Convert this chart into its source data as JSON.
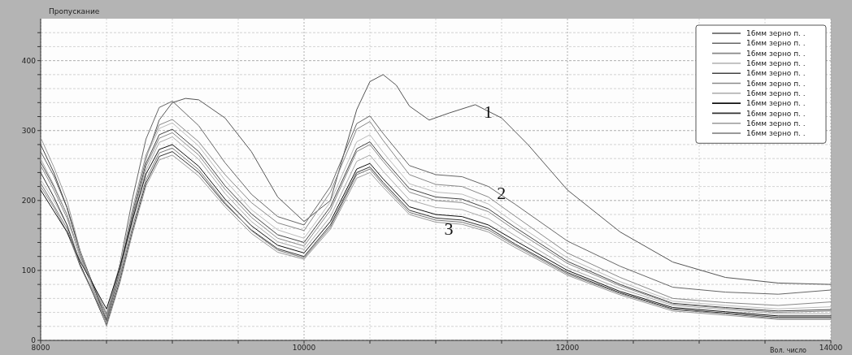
{
  "chart_data": {
    "type": "line",
    "title": "Пропускание",
    "xlabel": "Вол. число",
    "xlim": [
      8000,
      14000
    ],
    "xticks": [
      8000,
      {
        "value": 8500,
        "label": null
      },
      {
        "value": 9000,
        "label": null
      },
      {
        "value": 9500,
        "label": null
      },
      10000,
      {
        "value": 10500,
        "label": null
      },
      {
        "value": 11000,
        "label": null
      },
      {
        "value": 11500,
        "label": null
      },
      12000,
      {
        "value": 12500,
        "label": null
      },
      {
        "value": 13000,
        "label": null
      },
      {
        "value": 13500,
        "label": null
      },
      14000
    ],
    "ylim": [
      0,
      460
    ],
    "yticks": [
      0,
      {
        "value": 20,
        "label": null
      },
      {
        "value": 40,
        "label": null
      },
      {
        "value": 60,
        "label": null
      },
      {
        "value": 80,
        "label": null
      },
      100,
      {
        "value": 120,
        "label": null
      },
      {
        "value": 140,
        "label": null
      },
      {
        "value": 160,
        "label": null
      },
      {
        "value": 180,
        "label": null
      },
      200,
      {
        "value": 220,
        "label": null
      },
      {
        "value": 240,
        "label": null
      },
      {
        "value": 260,
        "label": null
      },
      {
        "value": 280,
        "label": null
      },
      300,
      {
        "value": 320,
        "label": null
      },
      {
        "value": 340,
        "label": null
      },
      {
        "value": 360,
        "label": null
      },
      {
        "value": 380,
        "label": null
      },
      400,
      {
        "value": 420,
        "label": null
      },
      {
        "value": 440,
        "label": null
      }
    ],
    "grid": true,
    "legend": "top right",
    "marker": "none",
    "line_style": "solid",
    "x": [
      8000,
      8100,
      8200,
      8300,
      8400,
      8500,
      8600,
      8700,
      8800,
      8900,
      9000,
      9200,
      9400,
      9600,
      9800,
      10000,
      10200,
      10400,
      10500,
      10600,
      10800,
      11000,
      11200,
      11400,
      11600,
      12000,
      12400,
      12800,
      13200,
      13600,
      14000
    ],
    "annotations": [
      {
        "text": "1",
        "x": 11300,
        "y": 337
      },
      {
        "text": "2",
        "x": 11400,
        "y": 220
      },
      {
        "text": "3",
        "x": 11000,
        "y": 169
      }
    ],
    "series": [
      {
        "name": "16мм зерно п. .",
        "color": "#555555",
        "x": [
          8000,
          8100,
          8200,
          8300,
          8400,
          8500,
          8600,
          8700,
          8800,
          8900,
          9000,
          9100,
          9200,
          9400,
          9600,
          9800,
          10000,
          10200,
          10400,
          10500,
          10600,
          10700,
          10800,
          10950,
          11100,
          11300,
          11500,
          11700,
          12000,
          12400,
          12800,
          13200,
          13600,
          14000
        ],
        "values": [
          255,
          220,
          180,
          120,
          80,
          38,
          100,
          185,
          260,
          315,
          340,
          346,
          344,
          318,
          270,
          205,
          170,
          200,
          330,
          370,
          380,
          365,
          335,
          315,
          325,
          337,
          318,
          280,
          215,
          155,
          112,
          90,
          82,
          80
        ]
      },
      {
        "name": "16мм зерно п. .",
        "color": "#666666",
        "values": [
          270,
          235,
          190,
          125,
          78,
          30,
          108,
          205,
          288,
          333,
          342,
          307,
          254,
          209,
          177,
          165,
          220,
          310,
          321,
          296,
          250,
          237,
          234,
          220,
          195,
          142,
          106,
          76,
          69,
          66,
          72
        ]
      },
      {
        "name": "16мм зерно п. .",
        "color": "#888888",
        "values": [
          250,
          215,
          175,
          121,
          78,
          35,
          105,
          190,
          265,
          308,
          316,
          284,
          237,
          197,
          168,
          157,
          212,
          302,
          313,
          286,
          237,
          223,
          220,
          205,
          178,
          125,
          90,
          60,
          54,
          50,
          55
        ]
      },
      {
        "name": "16мм зерно п. .",
        "color": "#bbbbbb",
        "values": [
          230,
          200,
          165,
          116,
          78,
          40,
          108,
          189,
          262,
          303,
          311,
          278,
          229,
          187,
          158,
          146,
          198,
          284,
          294,
          269,
          224,
          212,
          209,
          195,
          168,
          118,
          84,
          56,
          50,
          45,
          48
        ]
      },
      {
        "name": "16мм зерно п. .",
        "color": "#444444",
        "values": [
          280,
          240,
          190,
          128,
          78,
          28,
          97,
          179,
          253,
          294,
          302,
          270,
          221,
          181,
          151,
          140,
          191,
          274,
          284,
          260,
          217,
          205,
          202,
          188,
          162,
          113,
          80,
          53,
          47,
          42,
          44
        ]
      },
      {
        "name": "16мм зерно п. .",
        "color": "#8a8a8a",
        "values": [
          220,
          190,
          155,
          107,
          70,
          32,
          98,
          178,
          249,
          289,
          297,
          265,
          216,
          176,
          146,
          135,
          186,
          270,
          280,
          256,
          212,
          200,
          197,
          184,
          158,
          110,
          78,
          52,
          46,
          40,
          42
        ]
      },
      {
        "name": "16мм зерно п. .",
        "color": "#aaaaaa",
        "values": [
          260,
          222,
          180,
          119,
          72,
          25,
          92,
          172,
          243,
          283,
          291,
          259,
          210,
          170,
          141,
          130,
          177,
          256,
          265,
          242,
          201,
          190,
          187,
          174,
          150,
          104,
          74,
          50,
          44,
          38,
          38
        ]
      },
      {
        "name": "16мм зерно п. .",
        "color": "#111111",
        "values": [
          215,
          185,
          155,
          113,
          79,
          45,
          104,
          174,
          238,
          273,
          280,
          249,
          202,
          164,
          136,
          125,
          170,
          245,
          253,
          231,
          191,
          180,
          177,
          165,
          143,
          100,
          70,
          47,
          41,
          35,
          35
        ]
      },
      {
        "name": "16мм зерно п. .",
        "color": "#333333",
        "values": [
          240,
          205,
          165,
          109,
          66,
          22,
          84,
          158,
          225,
          263,
          270,
          240,
          195,
          158,
          131,
          120,
          165,
          240,
          248,
          226,
          186,
          175,
          172,
          161,
          138,
          97,
          68,
          45,
          39,
          33,
          33
        ]
      },
      {
        "name": "16мм зерно п. .",
        "color": "#999999",
        "values": [
          290,
          248,
          200,
          128,
          74,
          20,
          81,
          155,
          221,
          258,
          265,
          235,
          191,
          153,
          126,
          116,
          159,
          232,
          240,
          219,
          180,
          169,
          166,
          155,
          133,
          93,
          65,
          42,
          36,
          30,
          30
        ]
      },
      {
        "name": "16мм зерно п. .",
        "color": "#777777",
        "values": [
          225,
          193,
          160,
          106,
          67,
          27,
          89,
          164,
          230,
          268,
          275,
          244,
          197,
          157,
          129,
          118,
          162,
          237,
          245,
          223,
          183,
          172,
          169,
          158,
          136,
          95,
          67,
          44,
          38,
          31,
          31
        ]
      }
    ]
  }
}
